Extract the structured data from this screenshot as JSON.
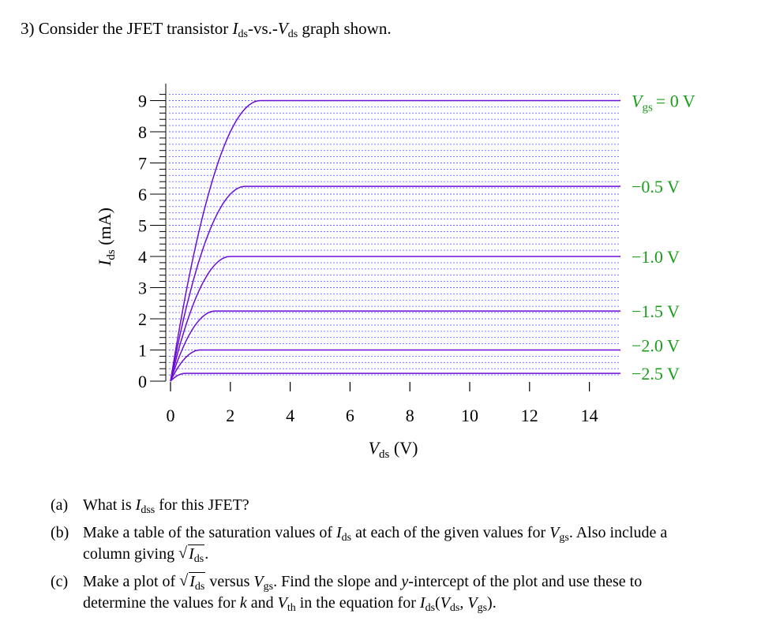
{
  "header": {
    "number": "3)",
    "prefix": "Consider the JFET transistor ",
    "y_sym": "I",
    "y_sub": "ds",
    "mid": "-vs.-",
    "x_sym": "V",
    "x_sub": "ds",
    "suffix": " graph shown."
  },
  "chart_data": {
    "type": "line",
    "xlabel": "V_ds (V)",
    "ylabel": "I_ds (mA)",
    "xlim": [
      0,
      15
    ],
    "ylim": [
      0,
      9.2
    ],
    "x_ticks": [
      "0",
      "2",
      "4",
      "6",
      "8",
      "10",
      "12",
      "14"
    ],
    "y_ticks": [
      "0",
      "1",
      "2",
      "3",
      "4",
      "5",
      "6",
      "7",
      "8",
      "9"
    ],
    "grid": true,
    "legend_position": "right",
    "series": [
      {
        "name": "V_gs = 0 V",
        "label_text": "= 0 V",
        "v_sat": 3.0,
        "i_sat": 9.0
      },
      {
        "name": "−0.5 V",
        "label_text": "−0.5 V",
        "v_sat": 2.5,
        "i_sat": 6.25
      },
      {
        "name": "−1.0 V",
        "label_text": "−1.0 V",
        "v_sat": 2.0,
        "i_sat": 4.0
      },
      {
        "name": "−1.5 V",
        "label_text": "−1.5 V",
        "v_sat": 1.5,
        "i_sat": 2.25
      },
      {
        "name": "−2.0 V",
        "label_text": "−2.0 V",
        "v_sat": 1.0,
        "i_sat": 1.0
      },
      {
        "name": "−2.5 V",
        "label_text": "−2.5 V",
        "v_sat": 0.5,
        "i_sat": 0.25
      }
    ],
    "colors": {
      "curve": "#6a0dd6",
      "grid": "#6a6aff",
      "series_label": "#1a9e1a"
    },
    "axis_labels": {
      "y_sym": "I",
      "y_sub": "ds",
      "y_unit": " (mA)",
      "x_sym": "V",
      "x_sub": "ds",
      "x_unit": " (V)",
      "vgs_sym": "V",
      "vgs_sub": "gs"
    }
  },
  "questions": {
    "a": {
      "label": "(a)",
      "t1": "What is ",
      "sym": "I",
      "sub": "dss",
      "t2": " for this JFET?"
    },
    "b": {
      "label": "(b)",
      "t1": "Make a table of the saturation values of ",
      "sym1": "I",
      "sub1": "ds",
      "t2": " at each of the given values for ",
      "sym2": "V",
      "sub2": "gs",
      "t3": ". Also include a",
      "t4": "column giving ",
      "radical": "√",
      "sym3": "I",
      "sub3": "ds",
      "t5": "."
    },
    "c": {
      "label": "(c)",
      "t1": "Make a plot of ",
      "radical": "√",
      "sym1": "I",
      "sub1": "ds",
      "t2": " versus ",
      "sym2": "V",
      "sub2": "gs",
      "t3": ". Find the slope and ",
      "y": "y",
      "t4": "-intercept of the plot and use these to",
      "t5": "determine the values for ",
      "k": "k",
      "t6": " and ",
      "sym3": "V",
      "sub3": "th",
      "t7": " in the equation for ",
      "sym4": "I",
      "sub4": "ds",
      "t8": "(",
      "sym5": "V",
      "sub5": "ds",
      "t9": ", ",
      "sym6": "V",
      "sub6": "gs",
      "t10": ")."
    }
  }
}
